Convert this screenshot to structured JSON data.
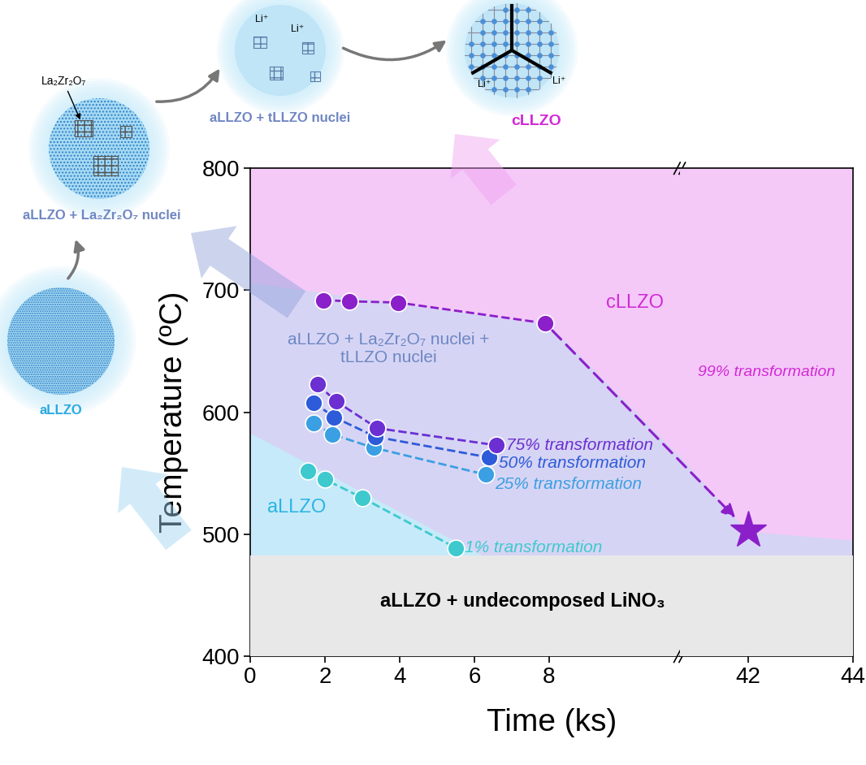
{
  "chart_data": {
    "type": "line",
    "xlabel": "Time (ks)",
    "ylabel": "Temperature (ºC)",
    "x_segments": [
      {
        "xlim": [
          0,
          11.5
        ],
        "xticks": [
          0,
          2,
          4,
          6,
          8
        ]
      },
      {
        "xlim": [
          40.7,
          44
        ],
        "xticks": [
          42,
          44
        ]
      }
    ],
    "ylim": [
      400,
      800
    ],
    "yticks": [
      400,
      500,
      600,
      700,
      800
    ],
    "grid": false,
    "regions": [
      {
        "name": "cLLZO",
        "color": "#f4c9f8",
        "x": [
          0,
          44
        ],
        "upper": [
          800,
          800
        ]
      },
      {
        "name": "aLLZO + La₂Zr₂O₇ nuclei +\ntLLZO nuclei",
        "color": "#d6d4f4",
        "x": [
          0,
          8,
          11.5,
          40.7,
          42,
          44
        ],
        "upper": [
          706,
          672,
          564,
          564,
          502,
          495
        ]
      },
      {
        "name": "aLLZO",
        "color": "#c6eaf9",
        "x": [
          0,
          6.2
        ],
        "upper": [
          583,
          483
        ]
      },
      {
        "name": "aLLZO + undecomposed LiNO₃",
        "color": "#e8e8e8",
        "x": [
          0,
          44
        ],
        "upper": [
          483,
          483
        ]
      }
    ],
    "series": [
      {
        "name": "1% transformation",
        "color": "#3ec9cf",
        "marker": "o",
        "line_style": "dashed",
        "x": [
          1.55,
          2.0,
          3.0,
          5.5
        ],
        "values": [
          552,
          545,
          530,
          489
        ]
      },
      {
        "name": "25% transformation",
        "color": "#3b9fe3",
        "marker": "o",
        "line_style": "dashed",
        "x": [
          1.7,
          2.2,
          3.3,
          6.3
        ],
        "values": [
          591,
          582,
          571,
          549
        ]
      },
      {
        "name": "50% transformation",
        "color": "#2d5bd9",
        "marker": "o",
        "line_style": "dashed",
        "x": [
          1.7,
          2.25,
          3.35,
          6.4
        ],
        "values": [
          608,
          596,
          580,
          563
        ]
      },
      {
        "name": "75% transformation",
        "color": "#6b2fd2",
        "marker": "o",
        "line_style": "dashed",
        "x": [
          1.8,
          2.3,
          3.4,
          6.6
        ],
        "values": [
          623,
          609,
          587,
          573
        ]
      },
      {
        "name": "99% transformation",
        "color": "#8b1fca",
        "marker": "o",
        "line_style": "dashed",
        "x": [
          1.95,
          2.65,
          3.95,
          7.9
        ],
        "values": [
          692,
          691,
          690,
          673
        ]
      }
    ],
    "end_point": {
      "x": 42,
      "y": 503,
      "marker": "star",
      "color": "#8b1fca"
    }
  },
  "schematic": {
    "stages": [
      "aLLZO",
      "aLLZO + La₂Zr₂O₇ nuclei",
      "aLLZO + tLLZO nuclei",
      "cLLZO"
    ],
    "nucleus_label": "La₂Zr₂O₇",
    "ion_label": "Li⁺"
  }
}
